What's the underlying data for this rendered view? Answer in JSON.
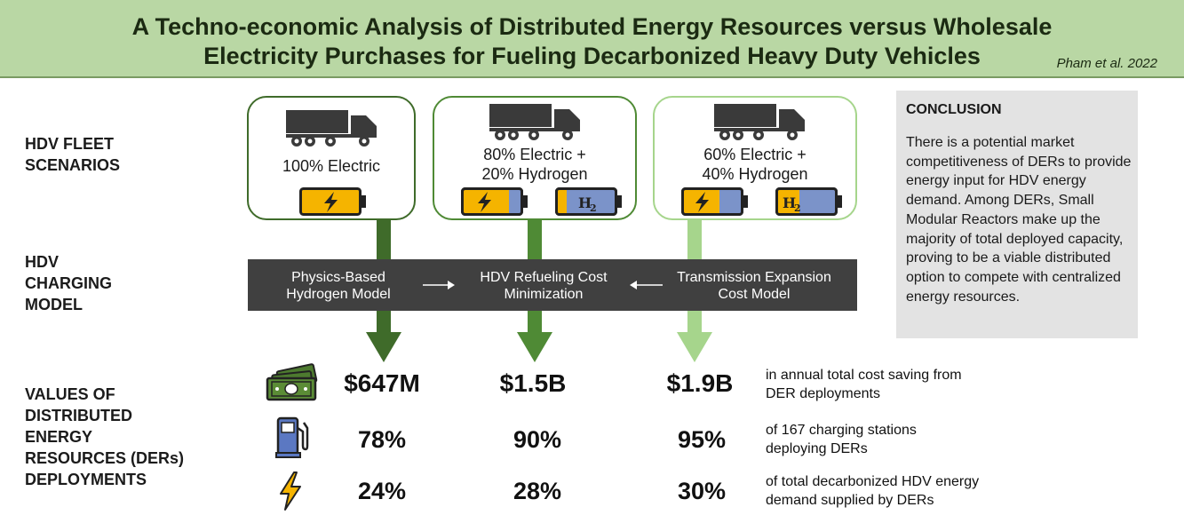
{
  "header": {
    "title_line1": "A Techno-economic Analysis of Distributed Energy Resources versus Wholesale",
    "title_line2": "Electricity Purchases for Fueling Decarbonized Heavy Duty Vehicles",
    "citation": "Pham et al. 2022"
  },
  "row_labels": {
    "fleet": [
      "HDV FLEET",
      "SCENARIOS"
    ],
    "charging": [
      "HDV",
      "CHARGING",
      "MODEL"
    ],
    "values": [
      "VALUES OF",
      "DISTRIBUTED",
      "ENERGY",
      "RESOURCES (DERs)",
      "DEPLOYMENTS"
    ]
  },
  "scenarios": [
    {
      "line1": "100% Electric",
      "line2": "",
      "color": "#3f6b2a"
    },
    {
      "line1": "80% Electric +",
      "line2": "20% Hydrogen",
      "color": "#4f8a35"
    },
    {
      "line1": "60% Electric +",
      "line2": "40% Hydrogen",
      "color": "#a6d58c"
    }
  ],
  "hydrogen_label": {
    "base": "H",
    "sub": "2"
  },
  "model": {
    "left": [
      "Physics-Based",
      "Hydrogen Model"
    ],
    "center": [
      "HDV Refueling Cost",
      "Minimization"
    ],
    "right": [
      "Transmission Expansion",
      "Cost Model"
    ]
  },
  "conclusion": {
    "title": "CONCLUSION",
    "body": "There is a potential market competitiveness of DERs to provide energy input for HDV energy demand. Among DERs, Small Modular Reactors make up the majority of total deployed capacity, proving to be a viable distributed option to compete with centralized energy resources."
  },
  "values": {
    "cost": [
      "$647M",
      "$1.5B",
      "$1.9B"
    ],
    "stations": [
      "78%",
      "90%",
      "95%"
    ],
    "energy": [
      "24%",
      "28%",
      "30%"
    ]
  },
  "descriptions": {
    "cost": [
      "in annual total cost saving from",
      "DER deployments"
    ],
    "stations": [
      "of 167 charging stations",
      "deploying DERs"
    ],
    "energy": [
      "of total decarbonized HDV energy",
      "demand supplied by DERs"
    ]
  },
  "icons": {
    "cost": "money-icon",
    "stations": "fuel-pump-icon",
    "energy": "lightning-icon",
    "truck": "truck-icon",
    "battery_electric": "battery-electric-icon",
    "battery_hydrogen": "battery-hydrogen-icon"
  },
  "colors": {
    "header_bg": "#b9d7a4",
    "battery_yellow": "#f5b400",
    "battery_blue": "#7b93c9",
    "model_bar": "#404040",
    "conclusion_bg": "#e3e3e3"
  }
}
